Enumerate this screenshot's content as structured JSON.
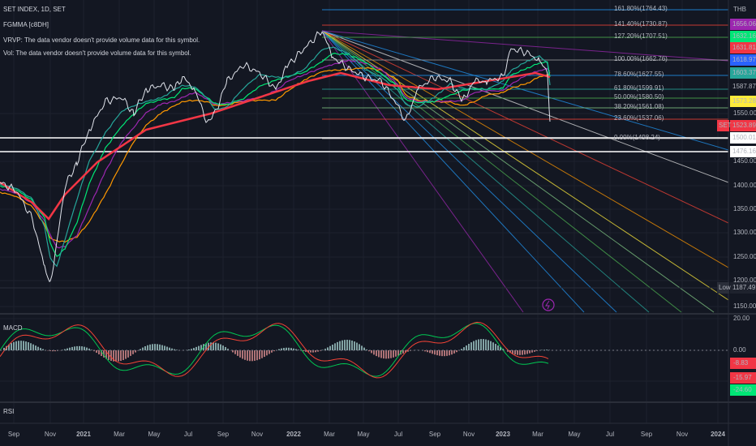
{
  "header": {
    "symbol": "SET INDEX, 1D, SET",
    "indicator": "FGMMA [c8DH]",
    "vrvp": "VRVP: The data vendor doesn't provide volume data for this symbol.",
    "vol": "Vol: The data vendor doesn't provide volume data for this symbol."
  },
  "price_axis": {
    "currency": "THB",
    "ticks": [
      "1550.00",
      "1450.00",
      "1400.00",
      "1350.00",
      "1300.00",
      "1250.00",
      "1200.00",
      "1150.00"
    ],
    "badges": [
      "1656.06",
      "1632.16",
      "1631.81",
      "1618.97",
      "1603.37",
      "1587.87",
      "1573.28",
      "1523.89",
      "1500.01",
      "1476.16",
      "1187.49"
    ],
    "set_tag": "SET",
    "low_tag": "Low"
  },
  "fib_levels": [
    "161.80%(1764.43)",
    "141.40%(1730.87)",
    "127.20%(1707.51)",
    "100.00%(1662.76)",
    "78.60%(1627.55)",
    "61.80%(1599.91)",
    "50.00%(1580.50)",
    "38.20%(1561.08)",
    "23.60%(1537.06)",
    "0.00%(1498.24)"
  ],
  "macd": {
    "title": "MACD",
    "ticks": [
      "20.00",
      "0.00"
    ],
    "badges": [
      "-8.83",
      "-15.97",
      "-24.60"
    ]
  },
  "rsi": {
    "title": "RSI"
  },
  "time_axis": [
    "Sep",
    "Nov",
    "2021",
    "Mar",
    "May",
    "Jul",
    "Sep",
    "Nov",
    "2022",
    "Mar",
    "May",
    "Jul",
    "Sep",
    "Nov",
    "2023",
    "Mar",
    "May",
    "Jul",
    "Sep",
    "Nov",
    "2024"
  ]
}
